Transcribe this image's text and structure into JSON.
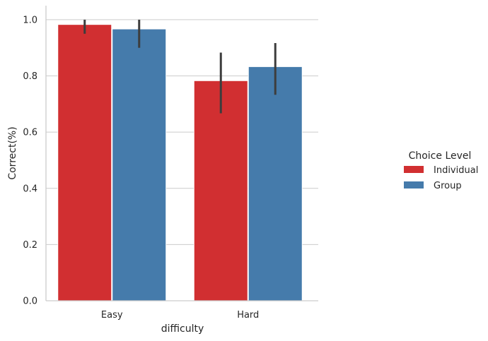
{
  "chart_data": {
    "type": "bar",
    "xlabel": "difficulty",
    "ylabel": "Correct(%)",
    "categories": [
      "Easy",
      "Hard"
    ],
    "ylim": [
      0,
      1.05
    ],
    "yticks": [
      0.0,
      0.2,
      0.4,
      0.6,
      0.8,
      1.0
    ],
    "ytick_labels": [
      "0.0",
      "0.2",
      "0.4",
      "0.6",
      "0.8",
      "1.0"
    ],
    "grid": "horizontal",
    "legend": {
      "title": "Choice Level",
      "placement": "right"
    },
    "series": [
      {
        "name": "Individual",
        "color": "#d12f31",
        "values": [
          0.983,
          0.783
        ],
        "error_low": [
          0.95,
          0.667
        ],
        "error_high": [
          1.0,
          0.883
        ]
      },
      {
        "name": "Group",
        "color": "#457bab",
        "values": [
          0.967,
          0.833
        ],
        "error_low": [
          0.9,
          0.733
        ],
        "error_high": [
          1.0,
          0.917
        ]
      }
    ]
  }
}
